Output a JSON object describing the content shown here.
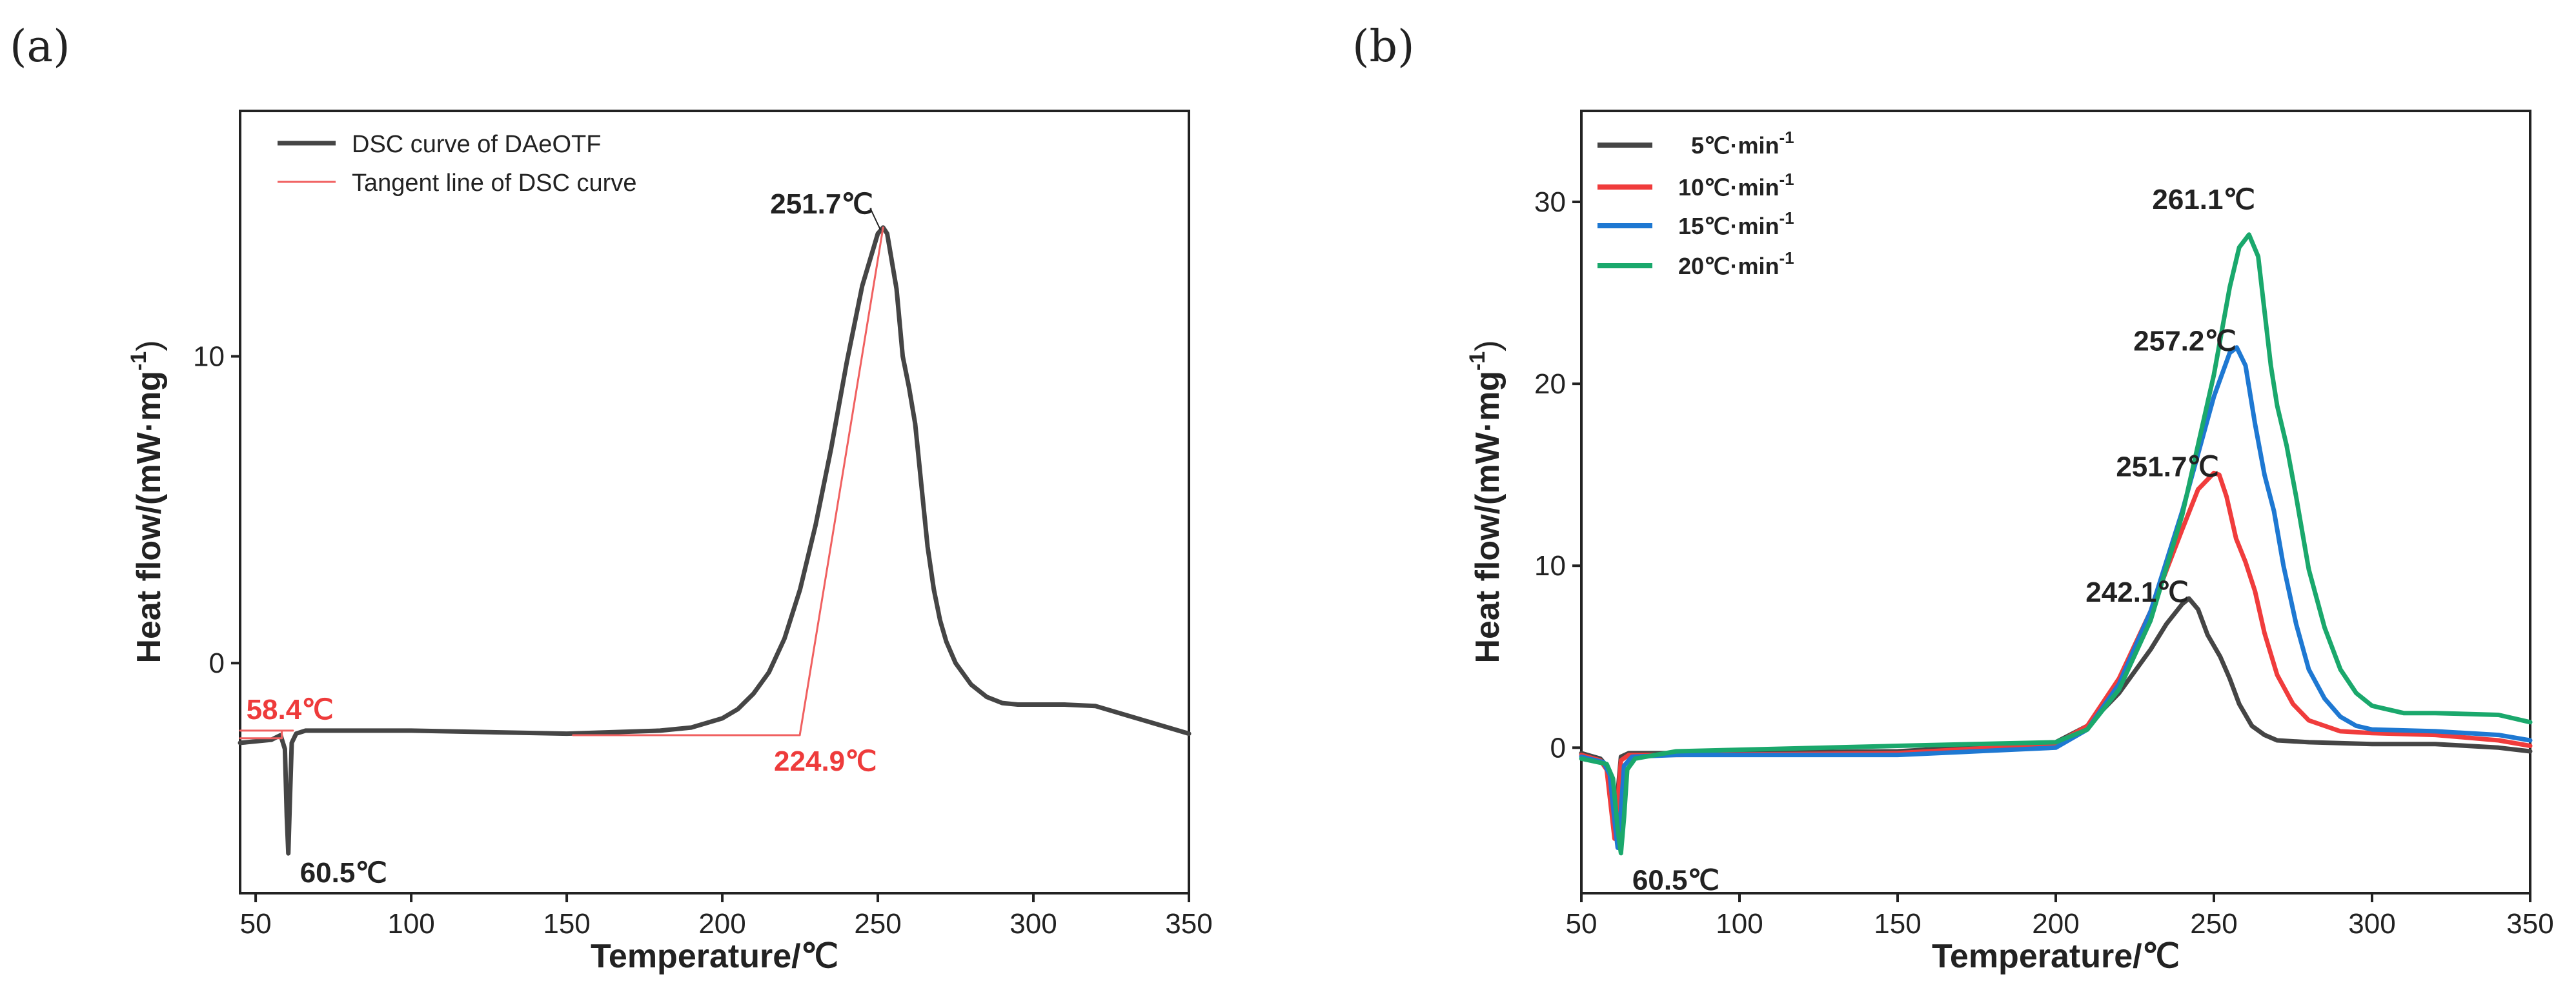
{
  "colors": {
    "dark": "#454545",
    "red": "#f03c3c",
    "blue": "#1e78d2",
    "green": "#1aa86c",
    "tangent": "#f06060"
  },
  "chart_data": [
    {
      "panel": "(a)",
      "type": "line",
      "xlabel": "Temperature/℃",
      "ylabel": "Heat flow/(mW·mg",
      "ylabel_sup": "-1",
      "ylabel_end": ")",
      "xlim": [
        45,
        350
      ],
      "ylim": [
        -7.5,
        18
      ],
      "xticks": [
        50,
        100,
        150,
        200,
        250,
        300,
        350
      ],
      "yticks": [
        0,
        10
      ],
      "legend": [
        "DSC curve of DAeOTF",
        "Tangent line of DSC curve"
      ],
      "series": [
        {
          "name": "DSC curve of DAeOTF",
          "color": "dark",
          "x": [
            45,
            55,
            58,
            59.4,
            60,
            60.5,
            61,
            61.6,
            63,
            66,
            75,
            100,
            150,
            180,
            190,
            200,
            205,
            210,
            215,
            220,
            225,
            230,
            235,
            240,
            245,
            250,
            251.7,
            253,
            256,
            258,
            260,
            262,
            264,
            266,
            268,
            270,
            272,
            275,
            280,
            285,
            290,
            295,
            300,
            310,
            320,
            330,
            340,
            350
          ],
          "y": [
            -2.6,
            -2.5,
            -2.35,
            -2.8,
            -5,
            -6.2,
            -4.5,
            -2.6,
            -2.3,
            -2.2,
            -2.2,
            -2.2,
            -2.3,
            -2.2,
            -2.1,
            -1.8,
            -1.5,
            -1.0,
            -0.3,
            0.8,
            2.4,
            4.5,
            7.0,
            9.8,
            12.3,
            14.0,
            14.2,
            14.0,
            12.2,
            10.0,
            9.0,
            7.8,
            5.8,
            3.8,
            2.4,
            1.4,
            0.7,
            0,
            -0.7,
            -1.1,
            -1.3,
            -1.35,
            -1.35,
            -1.35,
            -1.4,
            -1.7,
            -2.0,
            -2.3
          ]
        },
        {
          "name": "Tangent line of DSC curve",
          "color": "tangent",
          "x": [
            45,
            58.4,
            58.4,
            60.5,
            62,
            45
          ],
          "y": [
            -2.45,
            -2.45,
            -2.2,
            -2.2,
            -2.2,
            -2.2
          ]
        },
        {
          "name": "onset-tangent",
          "color": "tangent",
          "x": [
            152,
            224.9,
            251.7
          ],
          "y": [
            -2.35,
            -2.35,
            14.2
          ]
        }
      ],
      "annotations": [
        {
          "text": "251.7℃",
          "x": 251.7,
          "y": 14.2,
          "style": "dark"
        },
        {
          "text": "58.4℃",
          "x": 58.4,
          "y": -2.45,
          "style": "red"
        },
        {
          "text": "224.9℃",
          "x": 224.9,
          "y": -2.35,
          "style": "red"
        },
        {
          "text": "60.5℃",
          "x": 60.5,
          "y": -6.2,
          "style": "dark"
        }
      ]
    },
    {
      "panel": "(b)",
      "type": "line",
      "xlabel": "Temperature/℃",
      "ylabel": "Heat flow/(mW·mg",
      "ylabel_sup": "-1",
      "ylabel_end": ")",
      "xlim": [
        50,
        350
      ],
      "ylim": [
        -8,
        35
      ],
      "xticks": [
        50,
        100,
        150,
        200,
        250,
        300,
        350
      ],
      "yticks": [
        0,
        10,
        20,
        30
      ],
      "legend": [
        "5℃·min-1",
        "10℃·min-1",
        "15℃·min-1",
        "20℃·min-1"
      ],
      "legend_parts": [
        {
          "main": "5℃·min",
          "sup": "-1"
        },
        {
          "main": "10℃·min",
          "sup": "-1"
        },
        {
          "main": "15℃·min",
          "sup": "-1"
        },
        {
          "main": "20℃·min",
          "sup": "-1"
        }
      ],
      "series": [
        {
          "name": "5℃·min-1",
          "color": "dark",
          "x": [
            50,
            56,
            58,
            59.5,
            60.5,
            61.5,
            62.5,
            65,
            80,
            150,
            200,
            210,
            220,
            230,
            235,
            240,
            242.1,
            245,
            248,
            250,
            252,
            255,
            258,
            262,
            266,
            270,
            280,
            300,
            320,
            340,
            350
          ],
          "y": [
            -0.3,
            -0.6,
            -1.0,
            -2.8,
            -4.5,
            -2.5,
            -0.5,
            -0.3,
            -0.3,
            -0.2,
            0.3,
            1.2,
            3.0,
            5.4,
            6.8,
            7.9,
            8.2,
            7.6,
            6.2,
            5.6,
            5.0,
            3.8,
            2.4,
            1.2,
            0.7,
            0.4,
            0.3,
            0.2,
            0.2,
            0.0,
            -0.2
          ]
        },
        {
          "name": "10℃·min-1",
          "color": "red",
          "x": [
            50,
            56,
            58,
            59.5,
            60.5,
            61.5,
            62.5,
            65,
            80,
            150,
            200,
            210,
            220,
            230,
            240,
            245,
            250,
            251.7,
            254,
            257,
            260,
            263,
            266,
            270,
            275,
            280,
            290,
            300,
            320,
            340,
            350
          ],
          "y": [
            -0.4,
            -0.7,
            -1.2,
            -3.5,
            -5.0,
            -3.0,
            -0.7,
            -0.4,
            -0.4,
            -0.3,
            0.2,
            1.2,
            3.8,
            7.5,
            12.0,
            14.2,
            15.1,
            15.0,
            13.8,
            11.5,
            10.2,
            8.6,
            6.3,
            4.0,
            2.4,
            1.5,
            0.9,
            0.8,
            0.7,
            0.4,
            0.1
          ]
        },
        {
          "name": "15℃·min-1",
          "color": "blue",
          "x": [
            50,
            57,
            59,
            60.5,
            61.5,
            62.5,
            63.5,
            66,
            80,
            150,
            200,
            210,
            220,
            230,
            240,
            250,
            255,
            257.2,
            260,
            263,
            266,
            269,
            272,
            276,
            280,
            285,
            290,
            295,
            300,
            320,
            340,
            350
          ],
          "y": [
            -0.5,
            -0.8,
            -1.5,
            -4.0,
            -5.5,
            -3.5,
            -1.0,
            -0.5,
            -0.4,
            -0.4,
            0.0,
            1.0,
            3.5,
            7.5,
            13.0,
            19.3,
            21.7,
            22.0,
            21.0,
            17.8,
            15.0,
            13.0,
            10.0,
            6.8,
            4.3,
            2.7,
            1.7,
            1.2,
            1.0,
            0.9,
            0.7,
            0.4
          ]
        },
        {
          "name": "20℃·min-1",
          "color": "green",
          "x": [
            50,
            58,
            60,
            61.5,
            62.5,
            63.5,
            64.5,
            67,
            80,
            150,
            200,
            210,
            220,
            230,
            240,
            250,
            255,
            258,
            261.1,
            264,
            266,
            268,
            270,
            273,
            276,
            280,
            285,
            290,
            295,
            300,
            310,
            320,
            340,
            350
          ],
          "y": [
            -0.6,
            -0.9,
            -1.7,
            -4.5,
            -5.8,
            -3.8,
            -1.2,
            -0.6,
            -0.2,
            0.1,
            0.3,
            1.0,
            3.2,
            7.0,
            12.8,
            20.5,
            25.3,
            27.5,
            28.2,
            27.0,
            24.0,
            21.0,
            18.8,
            16.6,
            13.8,
            9.8,
            6.6,
            4.3,
            3.0,
            2.3,
            1.9,
            1.9,
            1.8,
            1.4
          ]
        }
      ],
      "annotations": [
        {
          "text": "261.1℃",
          "x": 261.1,
          "y": 28.2,
          "style": "dark"
        },
        {
          "text": "257.2℃",
          "x": 257.2,
          "y": 22.0,
          "style": "dark"
        },
        {
          "text": "251.7℃",
          "x": 251.7,
          "y": 15.1,
          "style": "dark"
        },
        {
          "text": "242.1℃",
          "x": 242.1,
          "y": 8.2,
          "style": "dark"
        },
        {
          "text": "60.5℃",
          "x": 61,
          "y": -5.5,
          "style": "dark"
        }
      ]
    }
  ]
}
